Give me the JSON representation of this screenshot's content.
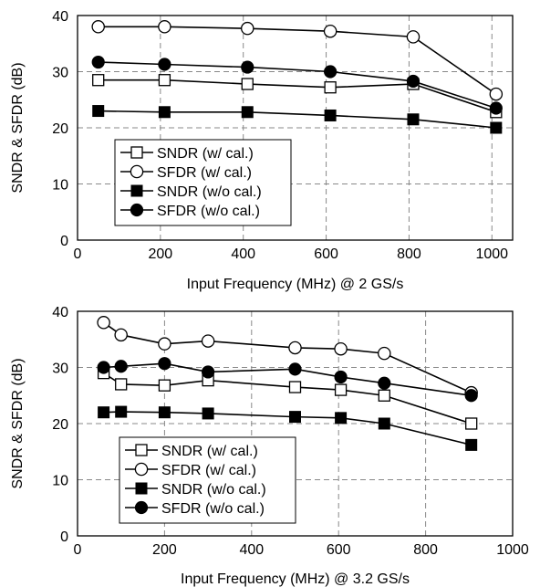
{
  "chart_data": [
    {
      "type": "line",
      "xlabel": "Input Frequency (MHz) @ 2 GS/s",
      "ylabel": "SNDR & SFDR (dB)",
      "xlim": [
        0,
        1050
      ],
      "ylim": [
        0,
        40
      ],
      "x_ticks": [
        0,
        200,
        400,
        600,
        800,
        1000
      ],
      "y_ticks": [
        0,
        10,
        20,
        30,
        40
      ],
      "grid": true,
      "legend": "bottom-left",
      "series": [
        {
          "name": "SNDR (w/ cal.)",
          "marker": "open-square",
          "x": [
            50,
            210,
            410,
            610,
            810,
            1010
          ],
          "y": [
            28.5,
            28.5,
            27.8,
            27.2,
            27.8,
            22.8
          ]
        },
        {
          "name": "SFDR (w/ cal.)",
          "marker": "open-circle",
          "x": [
            50,
            210,
            410,
            610,
            810,
            1010
          ],
          "y": [
            38.0,
            38.0,
            37.7,
            37.2,
            36.2,
            26.0
          ]
        },
        {
          "name": "SNDR (w/o cal.)",
          "marker": "filled-square",
          "x": [
            50,
            210,
            410,
            610,
            810,
            1010
          ],
          "y": [
            23.0,
            22.8,
            22.8,
            22.2,
            21.5,
            20.0
          ]
        },
        {
          "name": "SFDR (w/o cal.)",
          "marker": "filled-circle",
          "x": [
            50,
            210,
            410,
            610,
            810,
            1010
          ],
          "y": [
            31.7,
            31.3,
            30.8,
            30.0,
            28.3,
            23.5
          ]
        }
      ]
    },
    {
      "type": "line",
      "xlabel": "Input Frequency (MHz) @ 3.2 GS/s",
      "ylabel": "SNDR & SFDR (dB)",
      "xlim": [
        0,
        1000
      ],
      "ylim": [
        0,
        40
      ],
      "x_ticks": [
        0,
        200,
        400,
        600,
        800,
        1000
      ],
      "y_ticks": [
        0,
        10,
        20,
        30,
        40
      ],
      "grid": true,
      "legend": "bottom-left",
      "series": [
        {
          "name": "SNDR (w/ cal.)",
          "marker": "open-square",
          "x": [
            60,
            100,
            200,
            300,
            500,
            605,
            705,
            905
          ],
          "y": [
            29.0,
            27.0,
            26.8,
            27.7,
            26.5,
            26.0,
            25.0,
            20.0
          ]
        },
        {
          "name": "SFDR (w/ cal.)",
          "marker": "open-circle",
          "x": [
            60,
            100,
            200,
            300,
            500,
            605,
            705,
            905
          ],
          "y": [
            38.0,
            35.8,
            34.2,
            34.7,
            33.5,
            33.3,
            32.5,
            25.5
          ]
        },
        {
          "name": "SNDR (w/o cal.)",
          "marker": "filled-square",
          "x": [
            60,
            100,
            200,
            300,
            500,
            605,
            705,
            905
          ],
          "y": [
            22.0,
            22.1,
            22.0,
            21.8,
            21.2,
            21.0,
            20.0,
            16.2
          ]
        },
        {
          "name": "SFDR (w/o cal.)",
          "marker": "filled-circle",
          "x": [
            60,
            100,
            200,
            300,
            500,
            605,
            705,
            905
          ],
          "y": [
            30.0,
            30.2,
            30.7,
            29.2,
            29.7,
            28.3,
            27.2,
            25.0
          ]
        }
      ]
    }
  ]
}
